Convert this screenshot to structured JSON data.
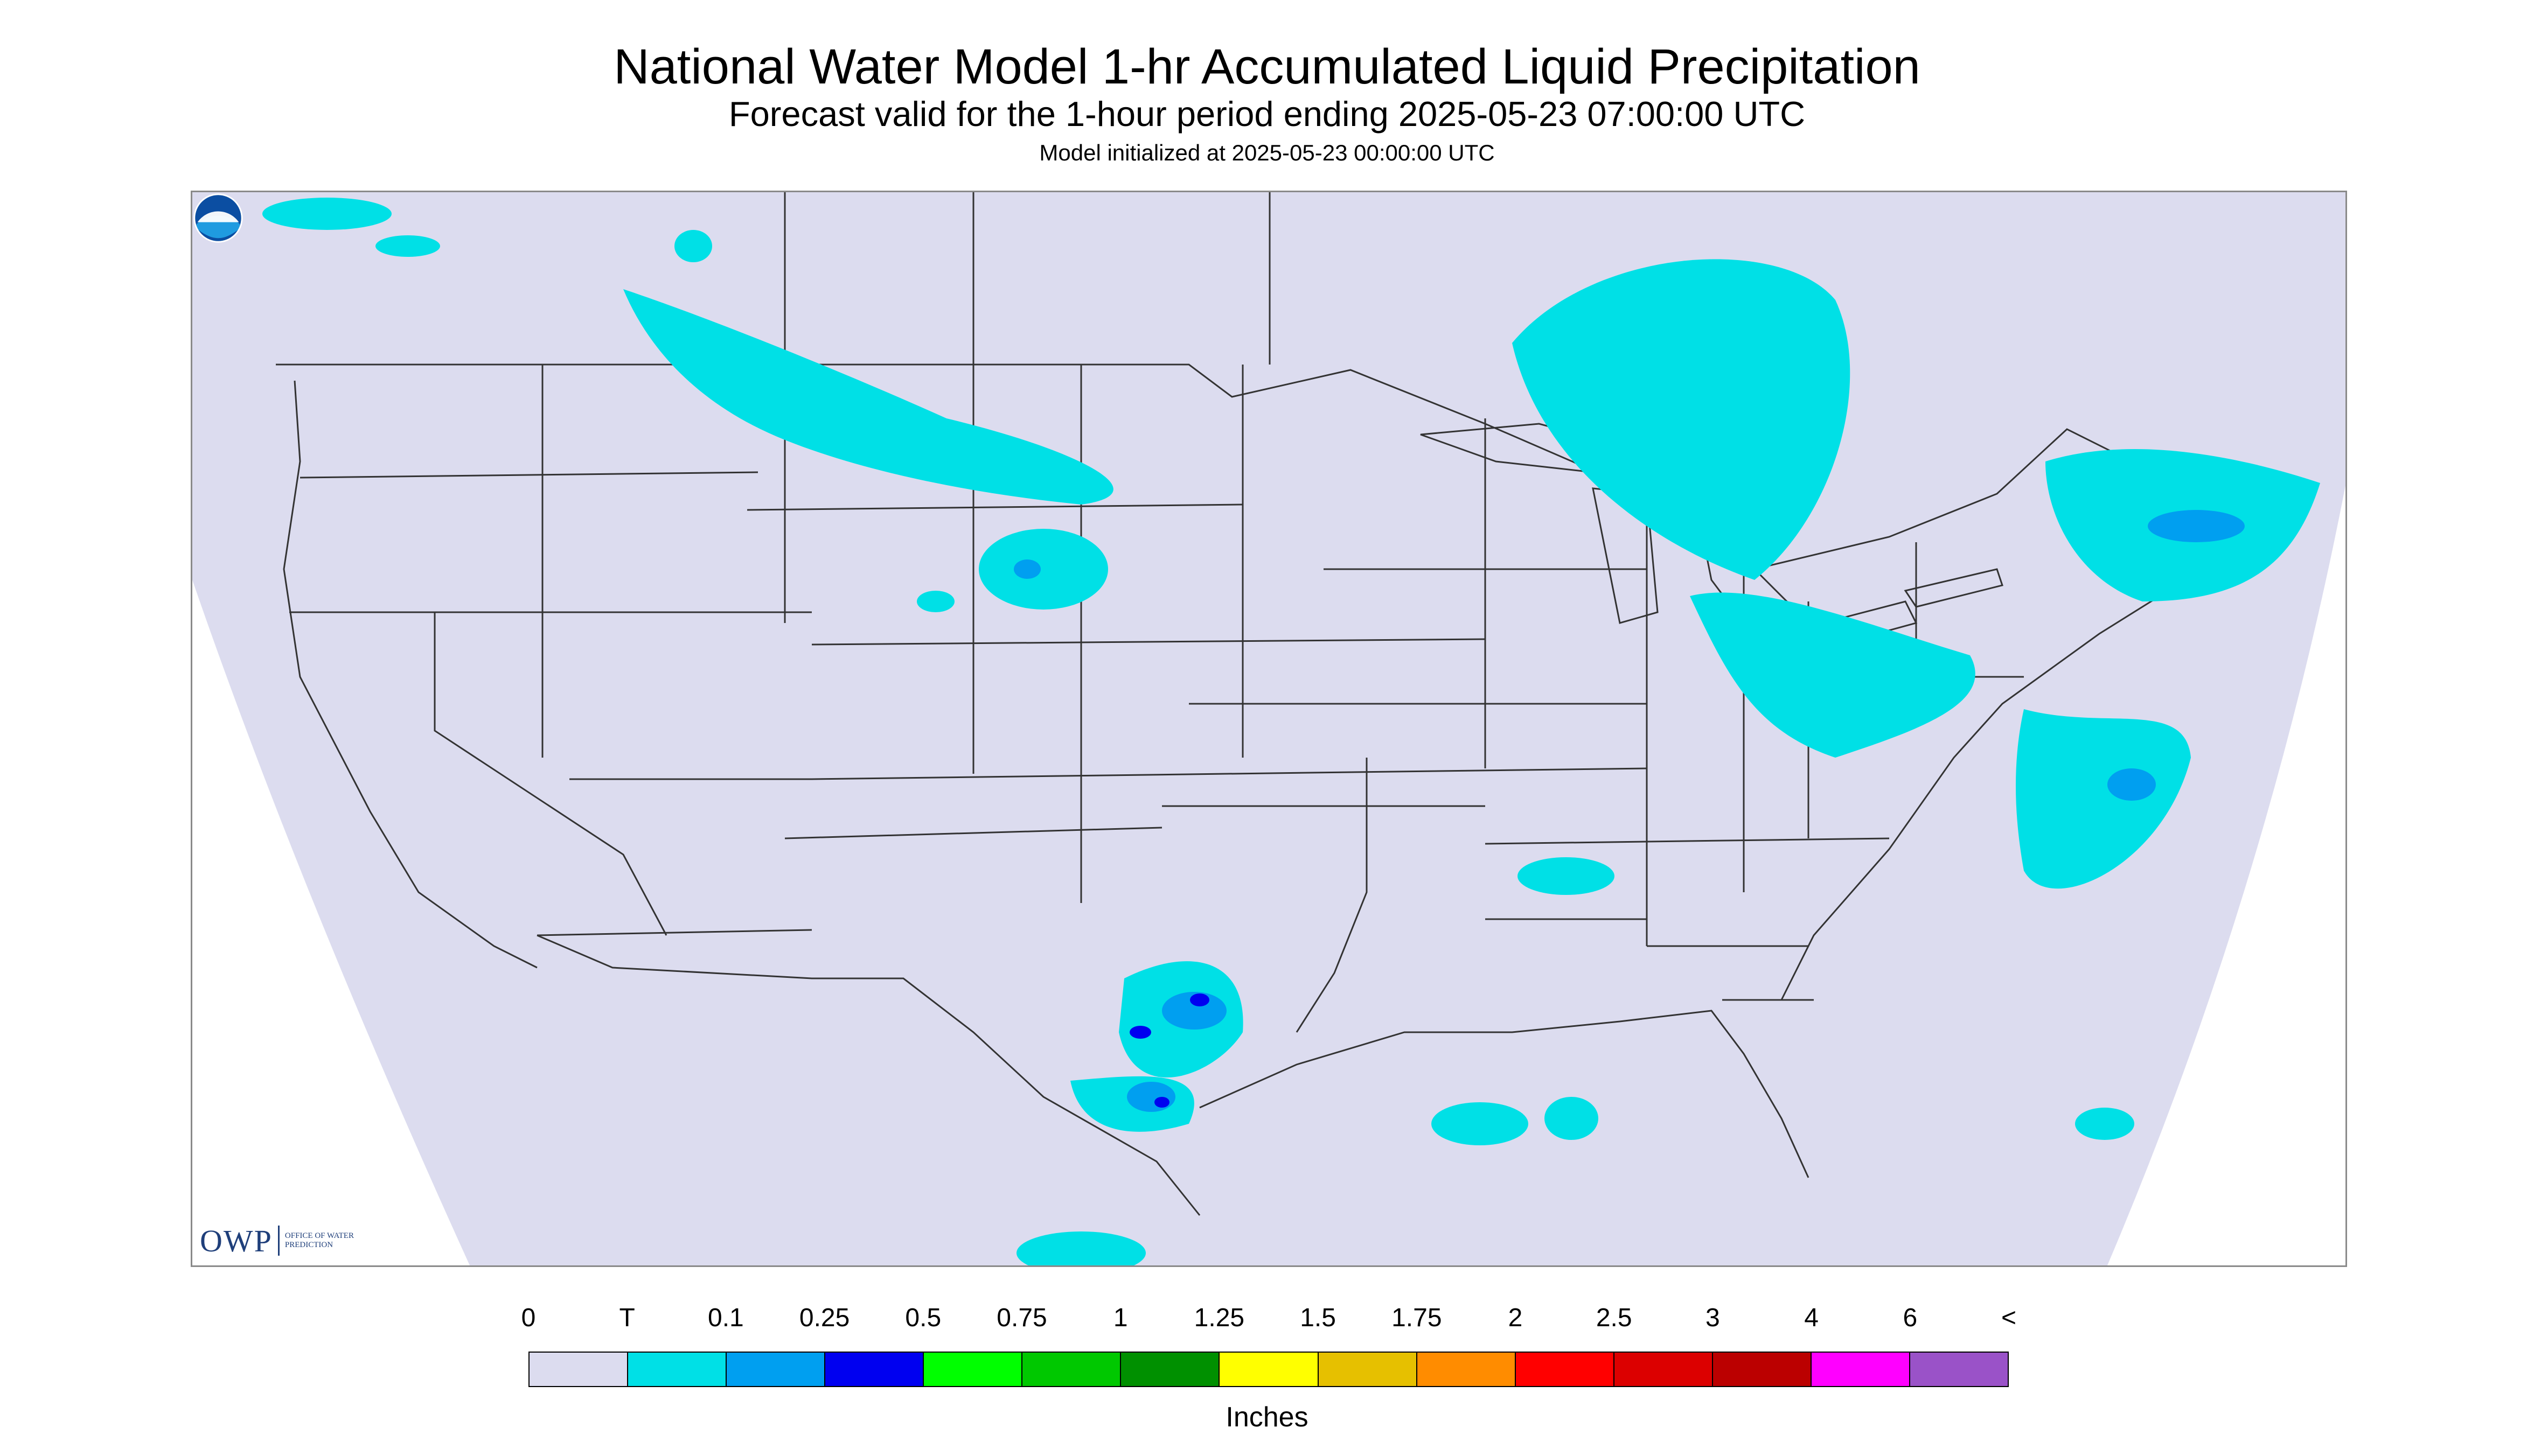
{
  "title": "National Water Model 1-hr Accumulated Liquid Precipitation",
  "subtitle": "Forecast valid for the 1-hour period ending 2025-05-23 07:00:00 UTC",
  "init_line": "Model initialized at 2025-05-23 00:00:00 UTC",
  "logos": {
    "owp_mark": "OWP",
    "owp_text": "OFFICE OF WATER PREDICTION",
    "noaa_icon": "noaa-logo-icon"
  },
  "legend": {
    "units": "Inches",
    "labels": [
      "0",
      "T",
      "0.1",
      "0.25",
      "0.5",
      "0.75",
      "1",
      "1.25",
      "1.5",
      "1.75",
      "2",
      "2.5",
      "3",
      "4",
      "6",
      "<"
    ],
    "colors": [
      "#dcdcef",
      "#00e0e6",
      "#009ff0",
      "#0000f0",
      "#00ff00",
      "#00c800",
      "#009000",
      "#ffff00",
      "#e6c000",
      "#ff8c00",
      "#ff0000",
      "#dc0000",
      "#bb0000",
      "#ff00ff",
      "#9a52c8"
    ]
  },
  "map": {
    "no_data_color": "#ffffff",
    "background_color": "#dcdcef",
    "boundary_color": "#333333"
  }
}
